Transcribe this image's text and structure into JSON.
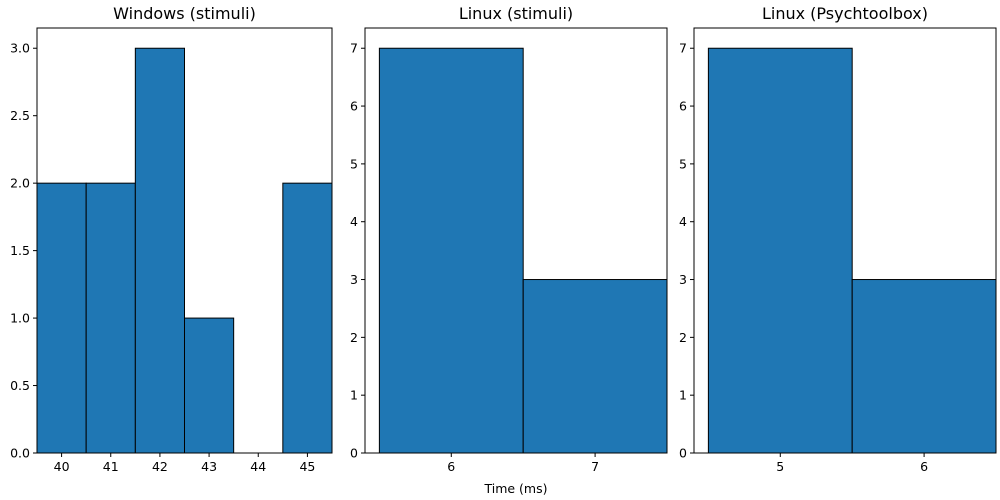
{
  "chart_data": [
    {
      "type": "bar",
      "title": "Windows (stimuli)",
      "xlabel": "",
      "ylabel": "",
      "bin_width": 1,
      "bin_centers": [
        40,
        41,
        42,
        43,
        44,
        45
      ],
      "values": [
        2,
        2,
        3,
        1,
        0,
        2
      ],
      "xlim": [
        39.5,
        45.5
      ],
      "ylim": [
        0,
        3.15
      ],
      "xticks": [
        40,
        41,
        42,
        43,
        44,
        45
      ],
      "yticks": [
        0.0,
        0.5,
        1.0,
        1.5,
        2.0,
        2.5,
        3.0
      ],
      "ytick_labels": [
        "0.0",
        "0.5",
        "1.0",
        "1.5",
        "2.0",
        "2.5",
        "3.0"
      ],
      "color": "#1f77b4",
      "edge_color": "#000000",
      "grid": false
    },
    {
      "type": "bar",
      "title": "Linux (stimuli)",
      "xlabel": "Time (ms)",
      "ylabel": "",
      "bin_width": 1,
      "bin_centers": [
        6,
        7
      ],
      "values": [
        7,
        3
      ],
      "xlim": [
        5.4,
        7.5
      ],
      "ylim": [
        0,
        7.35
      ],
      "xticks": [
        6,
        7
      ],
      "yticks": [
        0,
        1,
        2,
        3,
        4,
        5,
        6,
        7
      ],
      "ytick_labels": [
        "0",
        "1",
        "2",
        "3",
        "4",
        "5",
        "6",
        "7"
      ],
      "color": "#1f77b4",
      "edge_color": "#000000",
      "grid": false
    },
    {
      "type": "bar",
      "title": "Linux (Psychtoolbox)",
      "xlabel": "",
      "ylabel": "",
      "bin_width": 1,
      "bin_centers": [
        5,
        6
      ],
      "values": [
        7,
        3
      ],
      "xlim": [
        4.4,
        6.5
      ],
      "ylim": [
        0,
        7.35
      ],
      "xticks": [
        5,
        6
      ],
      "yticks": [
        0,
        1,
        2,
        3,
        4,
        5,
        6,
        7
      ],
      "ytick_labels": [
        "0",
        "1",
        "2",
        "3",
        "4",
        "5",
        "6",
        "7"
      ],
      "color": "#1f77b4",
      "edge_color": "#000000",
      "grid": false
    }
  ]
}
